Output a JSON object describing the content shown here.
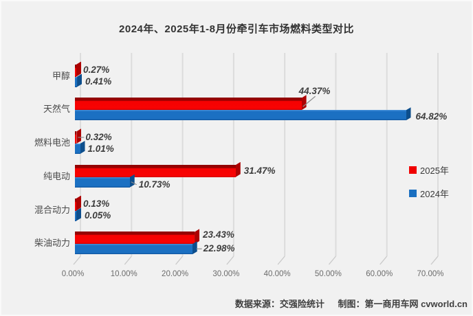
{
  "title": "2024年、2025年1-8月份牵引车市场燃料类型对比",
  "footer": {
    "source": "数据来源：交强险统计",
    "credit": "制图：第一商用车网 cvworld.cn"
  },
  "colors": {
    "series_2025": "#F00000",
    "series_2024": "#1A6FC0",
    "background": "#F1F1F1",
    "gridline": "#DCDCDC",
    "label_text": "#3D3D3D"
  },
  "chart_data": {
    "type": "bar",
    "orientation": "horizontal",
    "style": "3d",
    "title": "2024年、2025年1-8月份牵引车市场燃料类型对比",
    "categories": [
      "甲醇",
      "天然气",
      "燃料电池",
      "纯电动",
      "混合动力",
      "柴油动力"
    ],
    "series": [
      {
        "name": "2025年",
        "color": "#F00000",
        "values": [
          0.27,
          44.37,
          0.32,
          31.47,
          0.13,
          23.43
        ]
      },
      {
        "name": "2024年",
        "color": "#1A6FC0",
        "values": [
          0.41,
          64.82,
          1.01,
          10.73,
          0.05,
          22.98
        ]
      }
    ],
    "value_suffix": "%",
    "xlabel": "",
    "ylabel": "",
    "xlim": [
      0,
      70
    ],
    "x_ticks": [
      "0.00%",
      "10.00%",
      "20.00%",
      "30.00%",
      "40.00%",
      "50.00%",
      "60.00%",
      "70.00%"
    ],
    "grid": true,
    "legend_position": "middle-right"
  }
}
